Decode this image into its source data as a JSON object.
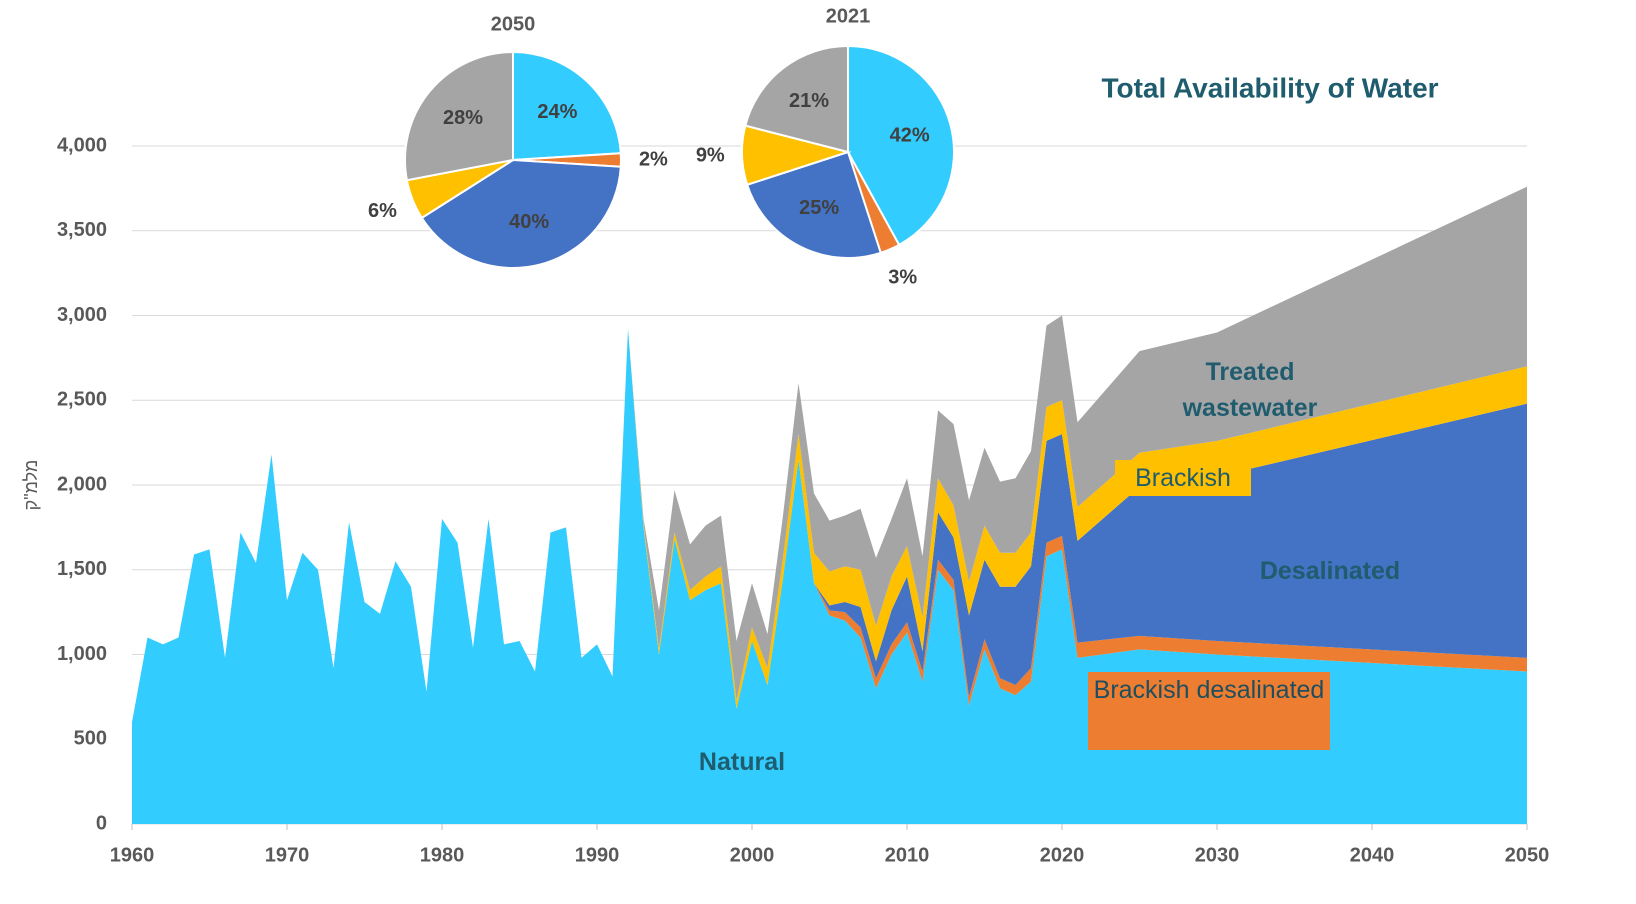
{
  "chart_data": [
    {
      "type": "area",
      "stacked": true,
      "title": "Total Availability of Water",
      "ylabel": "מלמ\"ק",
      "x": [
        1960,
        1961,
        1962,
        1963,
        1964,
        1965,
        1966,
        1967,
        1968,
        1969,
        1970,
        1971,
        1972,
        1973,
        1974,
        1975,
        1976,
        1977,
        1978,
        1979,
        1980,
        1981,
        1982,
        1983,
        1984,
        1985,
        1986,
        1987,
        1988,
        1989,
        1990,
        1991,
        1992,
        1993,
        1994,
        1995,
        1996,
        1997,
        1998,
        1999,
        2000,
        2001,
        2002,
        2003,
        2004,
        2005,
        2006,
        2007,
        2008,
        2009,
        2010,
        2011,
        2012,
        2013,
        2014,
        2015,
        2016,
        2017,
        2018,
        2019,
        2020,
        2021,
        2025,
        2030,
        2050
      ],
      "series": [
        {
          "name": "Natural",
          "color": "#33ccff",
          "values": [
            600,
            1100,
            1060,
            1100,
            1590,
            1620,
            980,
            1720,
            1540,
            2180,
            1320,
            1600,
            1500,
            920,
            1780,
            1310,
            1240,
            1550,
            1400,
            780,
            1800,
            1660,
            1040,
            1800,
            1060,
            1080,
            900,
            1720,
            1750,
            980,
            1060,
            870,
            2920,
            1750,
            1000,
            1680,
            1320,
            1380,
            1420,
            680,
            1080,
            820,
            1450,
            2150,
            1420,
            1230,
            1200,
            1100,
            800,
            1000,
            1130,
            840,
            1500,
            1380,
            700,
            1030,
            800,
            760,
            840,
            1580,
            1620,
            980,
            1030,
            1000,
            900
          ]
        },
        {
          "name": "Brackish desalinated",
          "color": "#ed7d31",
          "values": [
            0,
            0,
            0,
            0,
            0,
            0,
            0,
            0,
            0,
            0,
            0,
            0,
            0,
            0,
            0,
            0,
            0,
            0,
            0,
            0,
            0,
            0,
            0,
            0,
            0,
            0,
            0,
            0,
            0,
            0,
            0,
            0,
            0,
            0,
            0,
            0,
            0,
            0,
            0,
            0,
            0,
            0,
            0,
            0,
            0,
            30,
            50,
            60,
            60,
            60,
            60,
            60,
            60,
            60,
            50,
            60,
            60,
            60,
            80,
            80,
            80,
            90,
            80,
            80,
            80
          ]
        },
        {
          "name": "Desalinated",
          "color": "#4472c4",
          "values": [
            0,
            0,
            0,
            0,
            0,
            0,
            0,
            0,
            0,
            0,
            0,
            0,
            0,
            0,
            0,
            0,
            0,
            0,
            0,
            0,
            0,
            0,
            0,
            0,
            0,
            0,
            0,
            0,
            0,
            0,
            0,
            0,
            0,
            0,
            0,
            0,
            0,
            0,
            0,
            0,
            0,
            0,
            0,
            0,
            0,
            30,
            60,
            120,
            100,
            200,
            270,
            120,
            280,
            250,
            480,
            470,
            540,
            580,
            600,
            600,
            600,
            600,
            880,
            970,
            1500
          ]
        },
        {
          "name": "Brackish",
          "color": "#ffc000",
          "values": [
            0,
            0,
            0,
            0,
            0,
            0,
            0,
            0,
            0,
            0,
            0,
            0,
            0,
            0,
            0,
            0,
            0,
            0,
            0,
            0,
            0,
            0,
            0,
            0,
            0,
            0,
            0,
            0,
            0,
            0,
            0,
            0,
            0,
            20,
            30,
            40,
            60,
            80,
            100,
            50,
            80,
            100,
            120,
            150,
            180,
            200,
            210,
            220,
            210,
            200,
            180,
            200,
            200,
            190,
            200,
            200,
            200,
            200,
            200,
            200,
            200,
            200,
            200,
            210,
            220
          ]
        },
        {
          "name": "Treated wastewater",
          "color": "#a5a5a5",
          "values": [
            0,
            0,
            0,
            0,
            0,
            0,
            0,
            0,
            0,
            0,
            0,
            0,
            0,
            0,
            0,
            0,
            0,
            0,
            0,
            0,
            0,
            0,
            0,
            0,
            0,
            0,
            0,
            0,
            0,
            0,
            0,
            0,
            0,
            30,
            230,
            250,
            270,
            300,
            300,
            350,
            260,
            200,
            250,
            300,
            350,
            300,
            300,
            360,
            400,
            340,
            400,
            360,
            400,
            480,
            480,
            460,
            420,
            440,
            480,
            480,
            500,
            500,
            600,
            640,
            1060
          ]
        }
      ],
      "xlim": [
        1960,
        2050
      ],
      "xticks": [
        1960,
        1970,
        1980,
        1990,
        2000,
        2010,
        2020,
        2030,
        2040,
        2050
      ],
      "ylim": [
        0,
        4000
      ],
      "yticks": [
        0,
        500,
        {
          "value": 1000,
          "label": "1,000"
        },
        {
          "value": 1500,
          "label": "1,500"
        },
        {
          "value": 2000,
          "label": "2,000"
        },
        {
          "value": 2500,
          "label": "2,500"
        },
        {
          "value": 3000,
          "label": "3,000"
        },
        {
          "value": 3500,
          "label": "3,500"
        },
        {
          "value": 4000,
          "label": "4,000"
        }
      ],
      "grid": true
    },
    {
      "type": "pie",
      "title": "2050",
      "values": [
        24,
        2,
        40,
        6,
        28
      ],
      "value_labels": [
        "24%",
        "2%",
        "40%",
        "6%",
        "28%"
      ],
      "colors": [
        "#33ccff",
        "#ed7d31",
        "#4472c4",
        "#ffc000",
        "#a5a5a5"
      ]
    },
    {
      "type": "pie",
      "title": "2021",
      "values": [
        42,
        3,
        25,
        9,
        21
      ],
      "value_labels": [
        "42%",
        "3%",
        "25%",
        "9%",
        "21%"
      ],
      "colors": [
        "#33ccff",
        "#ed7d31",
        "#4472c4",
        "#ffc000",
        "#a5a5a5"
      ]
    }
  ]
}
